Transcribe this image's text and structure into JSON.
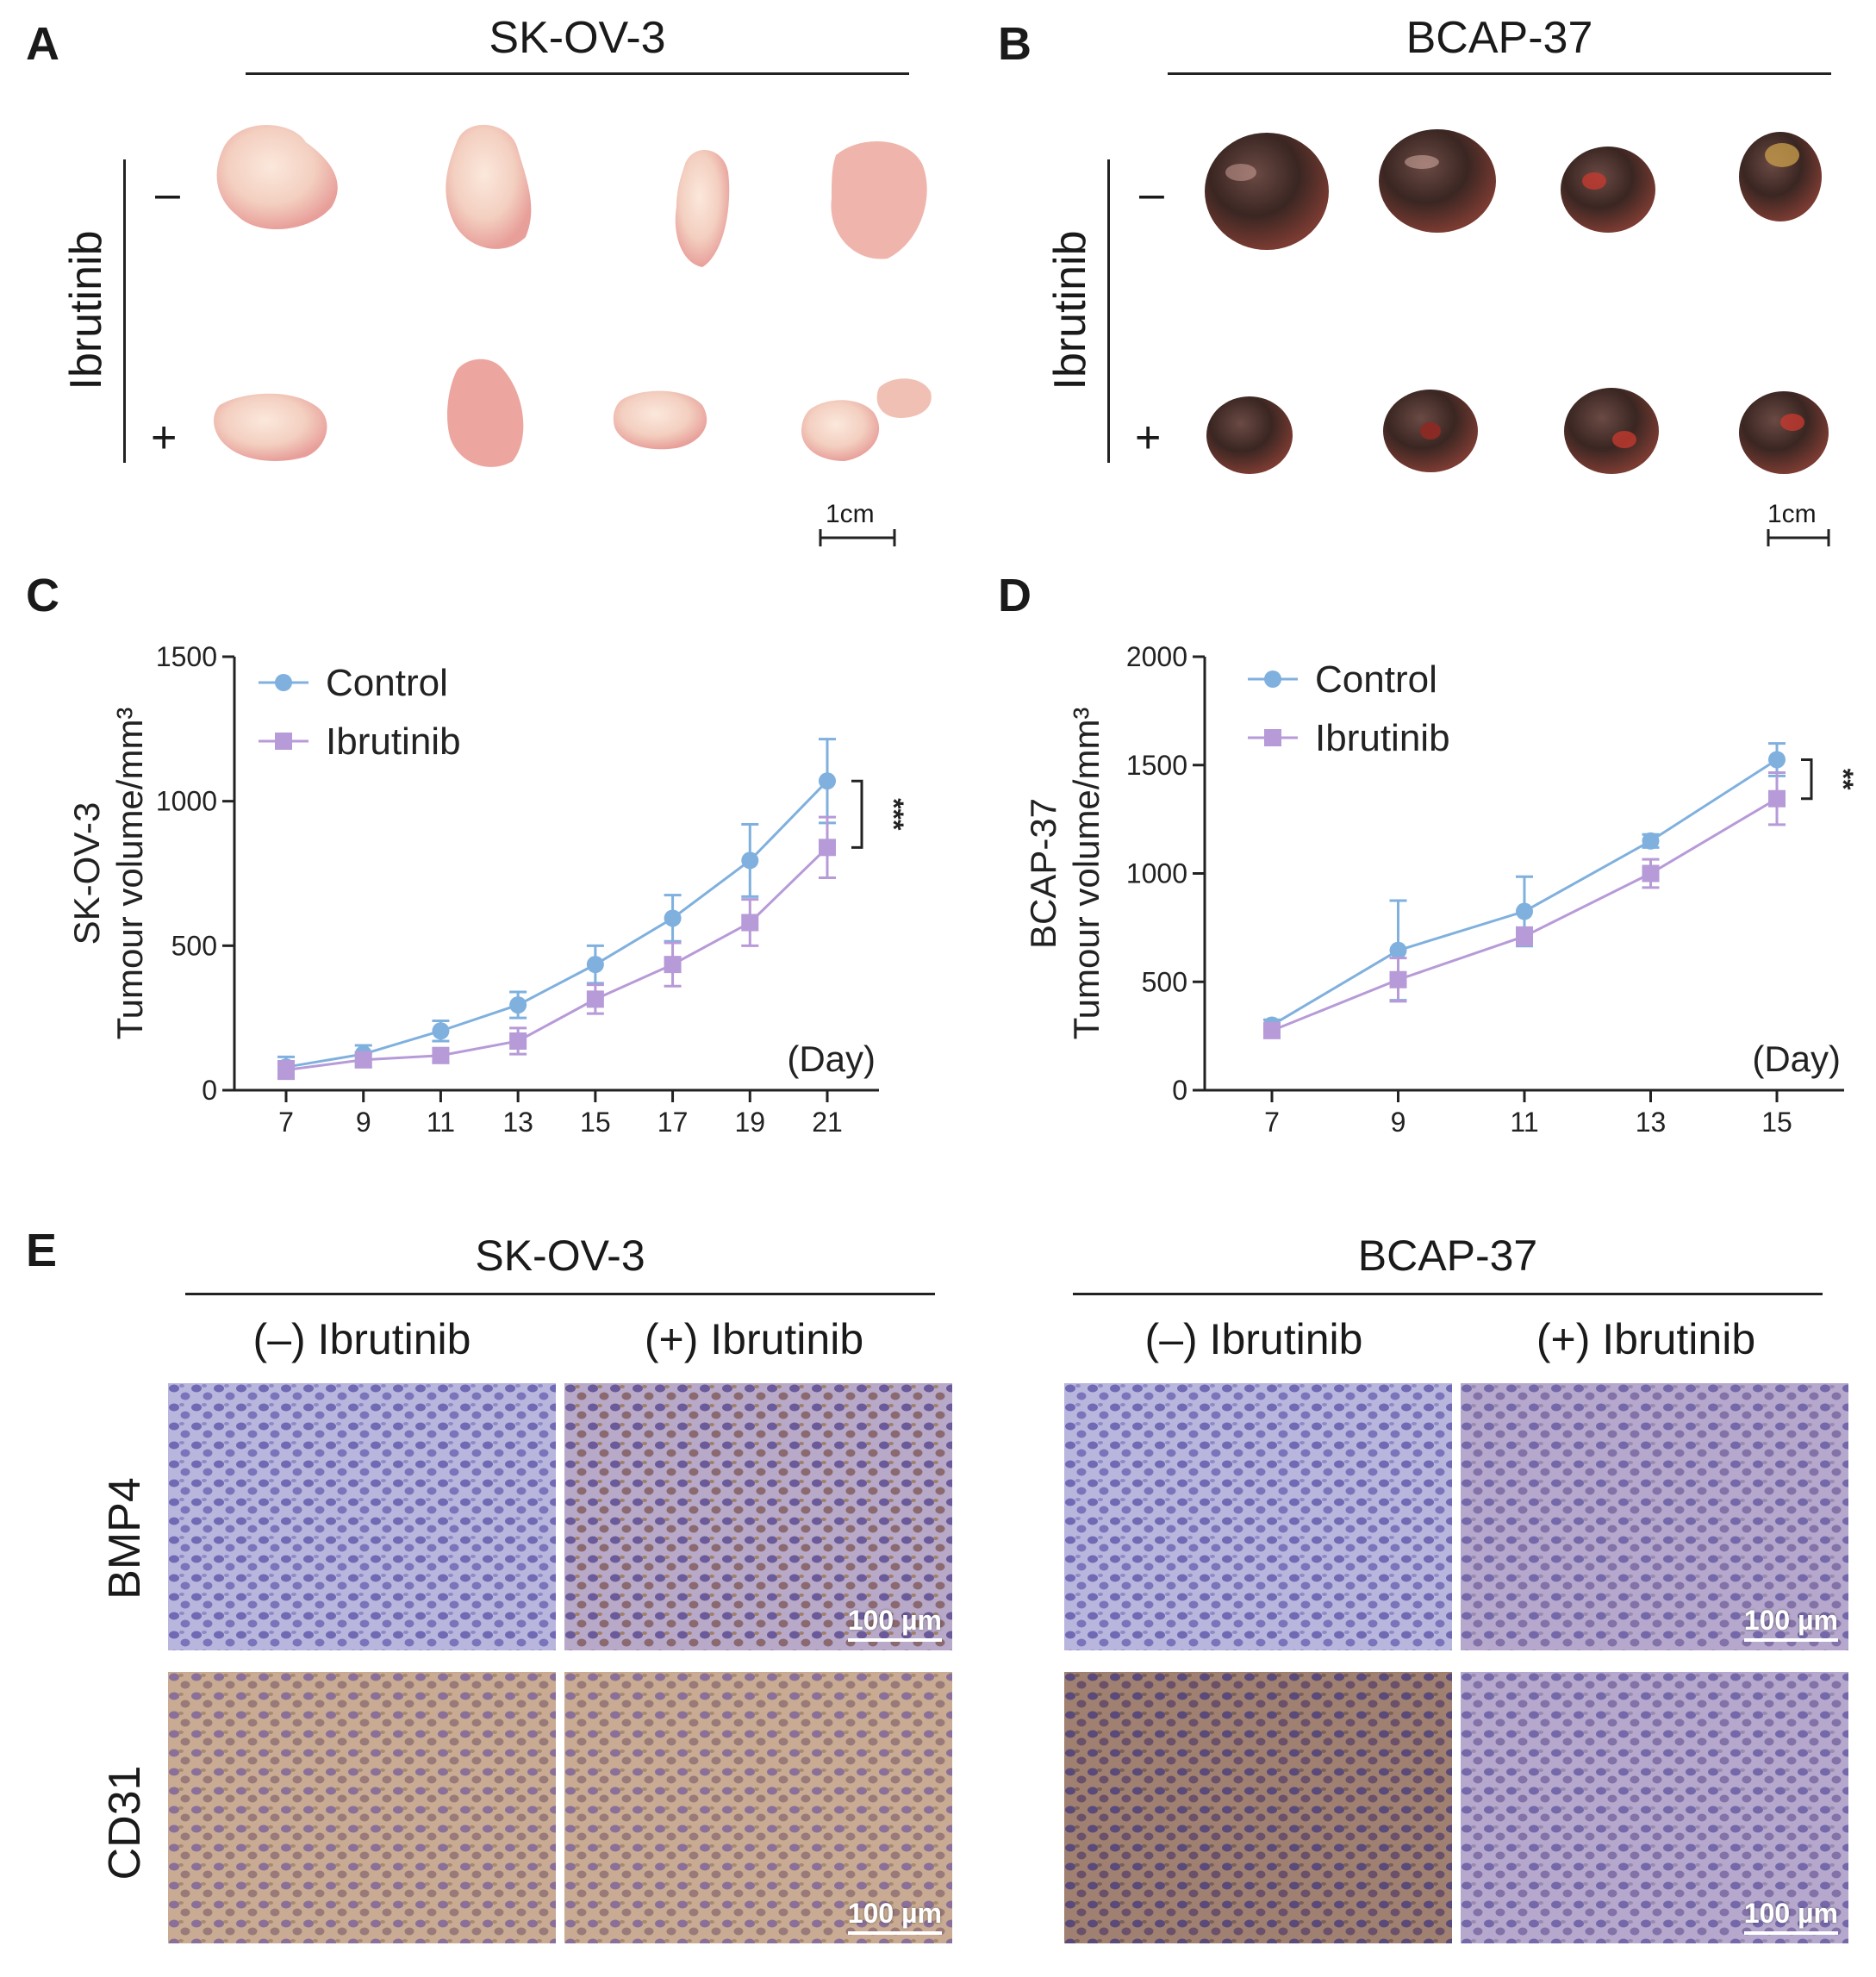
{
  "panels": {
    "a": {
      "letter": "A",
      "title": "SK-OV-3",
      "treatment": "Ibrutinib",
      "minus": "–",
      "plus": "+",
      "scale": "1cm"
    },
    "b": {
      "letter": "B",
      "title": "BCAP-37",
      "treatment": "Ibrutinib",
      "minus": "–",
      "plus": "+",
      "scale": "1cm"
    },
    "c": {
      "letter": "C"
    },
    "d": {
      "letter": "D"
    },
    "e": {
      "letter": "E",
      "groups": [
        "SK-OV-3",
        "BCAP-37"
      ],
      "col_neg": "(–) Ibrutinib",
      "col_pos": "(+) Ibrutinib",
      "rows": [
        "BMP4",
        "CD31"
      ],
      "scale": "100 µm"
    }
  },
  "colors": {
    "control": "#7fb0de",
    "ibrutinib": "#b79ad8",
    "tumor_pale": "#f3d3c6",
    "tumor_dark": "#3a2622",
    "ihc_blue": "#8a86c4",
    "ihc_brown": "#b89a82"
  },
  "chart_data": [
    {
      "type": "line",
      "id": "C",
      "ylabel": "SK-OV-3",
      "ylabel2": "Tumour volume/mm³",
      "xlabel": "(Day)",
      "x": [
        7,
        9,
        11,
        13,
        15,
        17,
        19,
        21
      ],
      "ylim": [
        0,
        1500
      ],
      "yticks": [
        0,
        500,
        1000,
        1500
      ],
      "series": [
        {
          "name": "Control",
          "values": [
            80,
            125,
            205,
            295,
            435,
            595,
            795,
            1070
          ],
          "errors": [
            35,
            30,
            35,
            45,
            65,
            80,
            125,
            145
          ]
        },
        {
          "name": "Ibrutinib",
          "values": [
            70,
            105,
            120,
            170,
            315,
            435,
            580,
            840
          ],
          "errors": [
            30,
            25,
            25,
            45,
            50,
            75,
            80,
            105
          ]
        }
      ],
      "significance": "***"
    },
    {
      "type": "line",
      "id": "D",
      "ylabel": "BCAP-37",
      "ylabel2": "Tumour volume/mm³",
      "xlabel": "(Day)",
      "x": [
        7,
        9,
        11,
        13,
        15
      ],
      "ylim": [
        0,
        2000
      ],
      "yticks": [
        0,
        500,
        1000,
        1500,
        2000
      ],
      "series": [
        {
          "name": "Control",
          "values": [
            300,
            645,
            825,
            1150,
            1525
          ],
          "errors": [
            25,
            230,
            160,
            30,
            75
          ]
        },
        {
          "name": "Ibrutinib",
          "values": [
            275,
            510,
            710,
            1000,
            1345
          ],
          "errors": [
            25,
            100,
            40,
            65,
            120
          ]
        }
      ],
      "significance": "**"
    }
  ]
}
